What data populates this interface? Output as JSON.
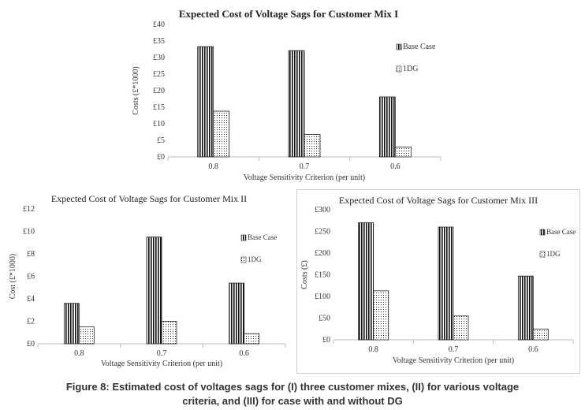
{
  "chart_data": [
    {
      "type": "bar",
      "title": "Expected Cost of Voltage Sags for Customer Mix I",
      "xlabel": "Voltage Sensitivity Criterion (per unit)",
      "ylabel": "Costs (£*1000)",
      "categories": [
        "0.8",
        "0.7",
        "0.6"
      ],
      "series": [
        {
          "name": "Base Case",
          "values": [
            33.3,
            32.1,
            18.1
          ]
        },
        {
          "name": "1DG",
          "values": [
            13.8,
            6.8,
            3.0
          ]
        }
      ],
      "ylim": [
        0,
        40
      ],
      "yticks": [
        "£0",
        "£5",
        "£10",
        "£15",
        "£20",
        "£25",
        "£30",
        "£35",
        "£40"
      ],
      "legend": "right"
    },
    {
      "type": "bar",
      "title": "Expected Cost of Voltage Sags for Customer Mix II",
      "xlabel": "Voltage Sensitivity Criterion (per unit)",
      "ylabel": "Cost (£*1000)",
      "categories": [
        "0.8",
        "0.7",
        "0.6"
      ],
      "series": [
        {
          "name": "Base Case",
          "values": [
            3.6,
            9.5,
            5.4
          ]
        },
        {
          "name": "1DG",
          "values": [
            1.5,
            2.0,
            0.9
          ]
        }
      ],
      "ylim": [
        0,
        12
      ],
      "yticks": [
        "£0",
        "£2",
        "£4",
        "£6",
        "£8",
        "£10",
        "£12"
      ],
      "legend": "right"
    },
    {
      "type": "bar",
      "title": "Expected Cost of Voltage Sags for Customer Mix III",
      "xlabel": "Voltage Sensitivity Criterion (per unit)",
      "ylabel": "Costs (£)",
      "categories": [
        "0.8",
        "0.7",
        "0.6"
      ],
      "series": [
        {
          "name": "Base Case",
          "values": [
            270,
            260,
            147
          ]
        },
        {
          "name": "1DG",
          "values": [
            113,
            55,
            25
          ]
        }
      ],
      "ylim": [
        0,
        300
      ],
      "yticks": [
        "£0",
        "£50",
        "£100",
        "£150",
        "£200",
        "£250",
        "£300"
      ],
      "legend": "right"
    }
  ],
  "caption": {
    "line1": "Figure 8:  Estimated cost of voltages sags for (I) three customer mixes, (II) for various voltage",
    "line2": "criteria, and (III) for case with and without DG"
  }
}
